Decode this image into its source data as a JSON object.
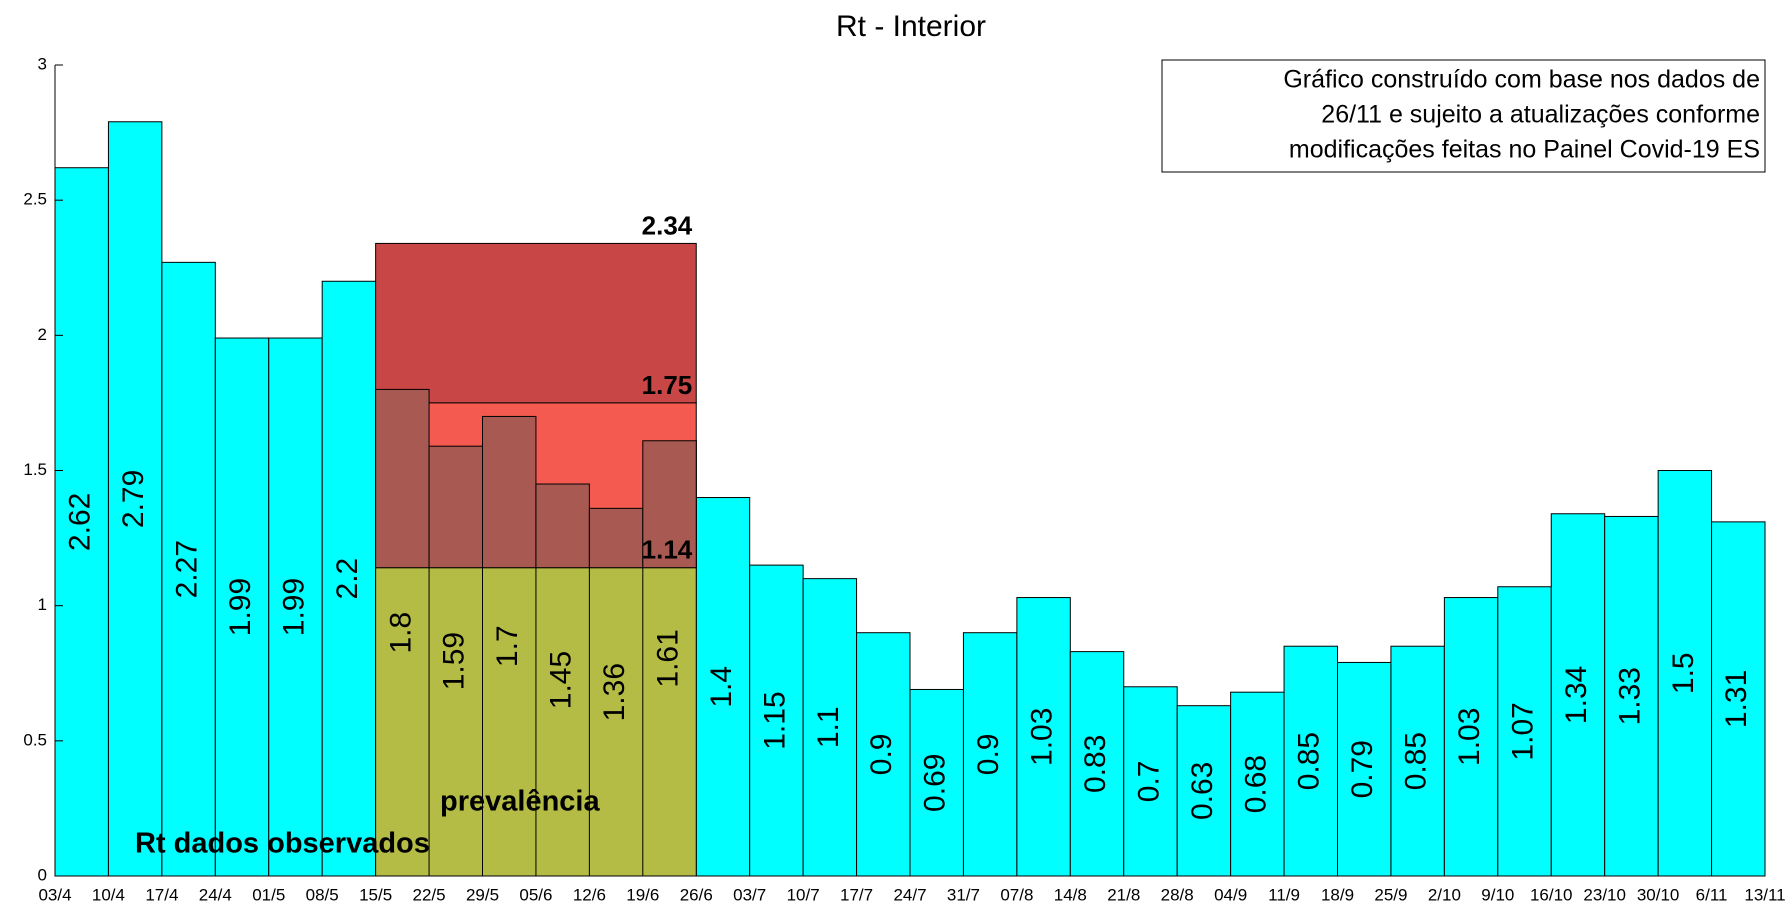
{
  "chart_data": {
    "type": "histogram",
    "title": "Rt - Interior",
    "bins": [
      "03/4",
      "10/4",
      "17/4",
      "24/4",
      "01/5",
      "08/5",
      "15/5",
      "22/5",
      "29/5",
      "05/6",
      "12/6",
      "19/6",
      "26/6",
      "03/7",
      "10/7",
      "17/7",
      "24/7",
      "31/7",
      "07/8",
      "14/8",
      "21/8",
      "28/8",
      "04/9",
      "11/9",
      "18/9",
      "25/9",
      "2/10",
      "9/10",
      "16/10",
      "23/10",
      "30/10",
      "6/11",
      "13/11"
    ],
    "values": [
      2.62,
      2.79,
      2.27,
      1.99,
      1.99,
      2.2,
      1.8,
      1.59,
      1.7,
      1.45,
      1.36,
      1.61,
      1.4,
      1.15,
      1.1,
      0.9,
      0.69,
      0.9,
      1.03,
      0.83,
      0.7,
      0.63,
      0.68,
      0.85,
      0.79,
      0.85,
      1.03,
      1.07,
      1.34,
      1.33,
      1.5,
      1.31
    ],
    "color": "#00ffff",
    "ylim": [
      0,
      3
    ],
    "yticks": [
      0,
      0.5,
      1,
      1.5,
      2,
      2.5,
      3
    ],
    "bands": [
      {
        "value": 2.34,
        "color": "#c84646"
      },
      {
        "value": 1.75,
        "color": "#f55a50"
      },
      {
        "value": 1.14,
        "color": "#b4bc46"
      }
    ],
    "overlap_color": "#a85a52",
    "annotations": [
      "Rt dados observados",
      "prevalência"
    ],
    "note": [
      "Gráfico construído com base nos dados de",
      "26/11 e sujeito a atualizações conforme",
      "modificações feitas no Painel Covid-19 ES"
    ]
  }
}
